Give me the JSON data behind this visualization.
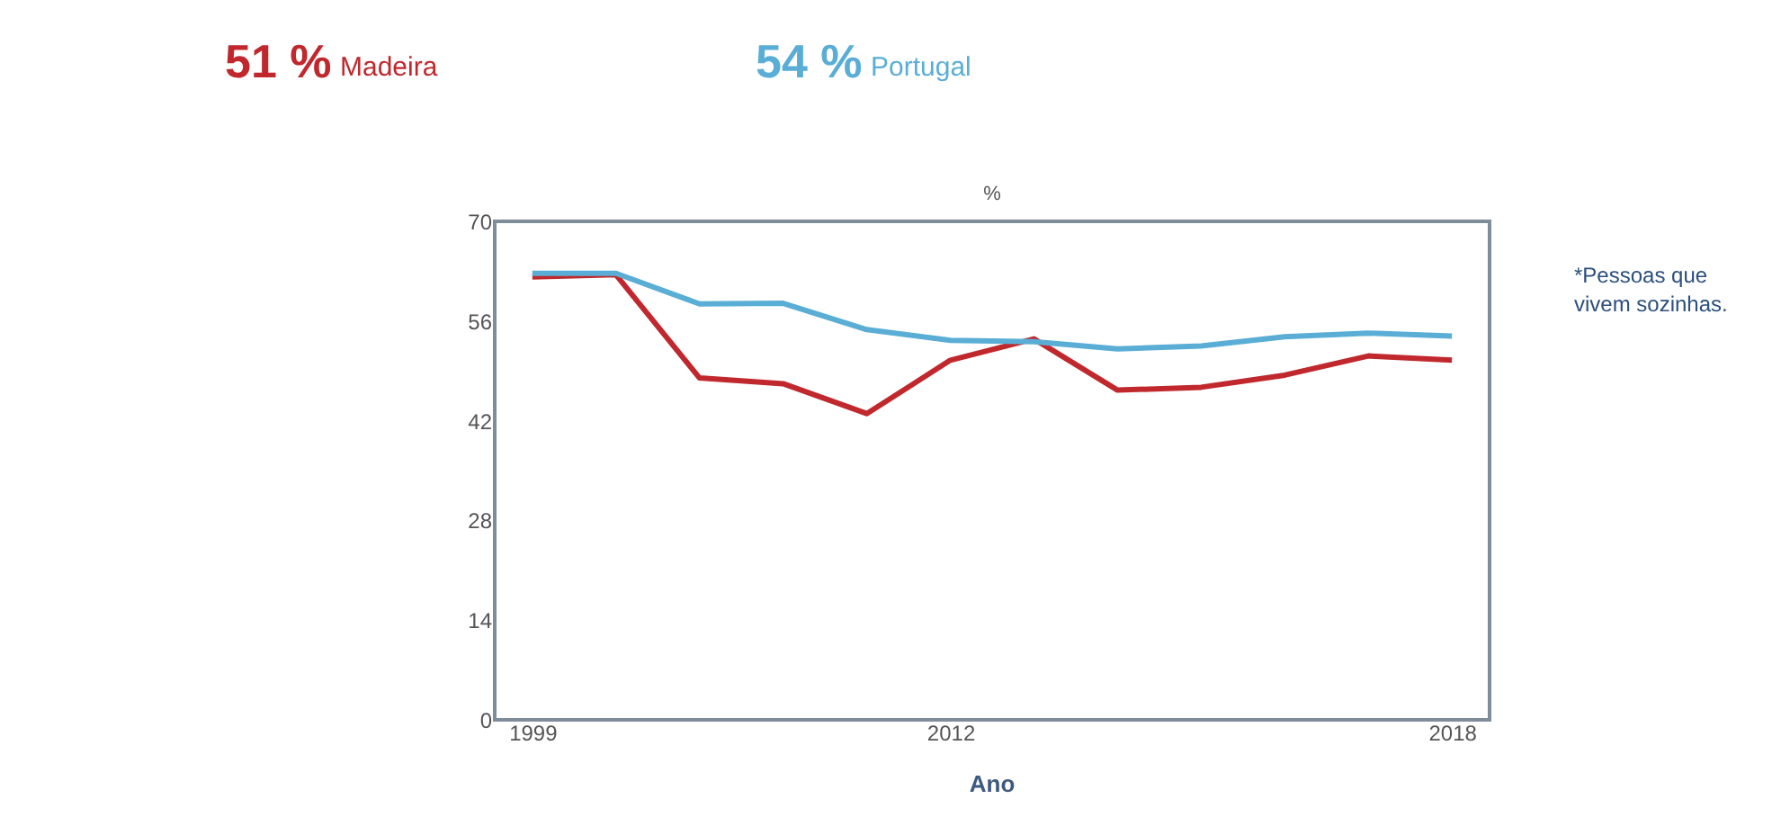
{
  "chart_data": {
    "type": "line",
    "title": "%",
    "xlabel": "Ano",
    "categories": [
      "1999",
      null,
      null,
      null,
      null,
      "2012",
      null,
      null,
      null,
      null,
      null,
      "2018"
    ],
    "series": [
      {
        "name": "Madeira",
        "color": "#c0282d",
        "values": [
          62.2,
          62.5,
          48.0,
          47.2,
          43.0,
          50.5,
          53.5,
          46.3,
          46.7,
          48.4,
          51.1,
          50.5
        ]
      },
      {
        "name": "Portugal",
        "color": "#5aaed6",
        "values": [
          62.7,
          62.7,
          58.4,
          58.5,
          54.8,
          53.3,
          53.1,
          52.1,
          52.5,
          53.8,
          54.3,
          53.9
        ]
      }
    ],
    "ylim": [
      0,
      70
    ],
    "yticks": [
      0,
      14,
      28,
      42,
      56,
      70
    ],
    "grid": false,
    "legend": "top",
    "annotations": [
      "51 %",
      "54 %",
      "*Pessoas que vivem sozinhas."
    ]
  }
}
